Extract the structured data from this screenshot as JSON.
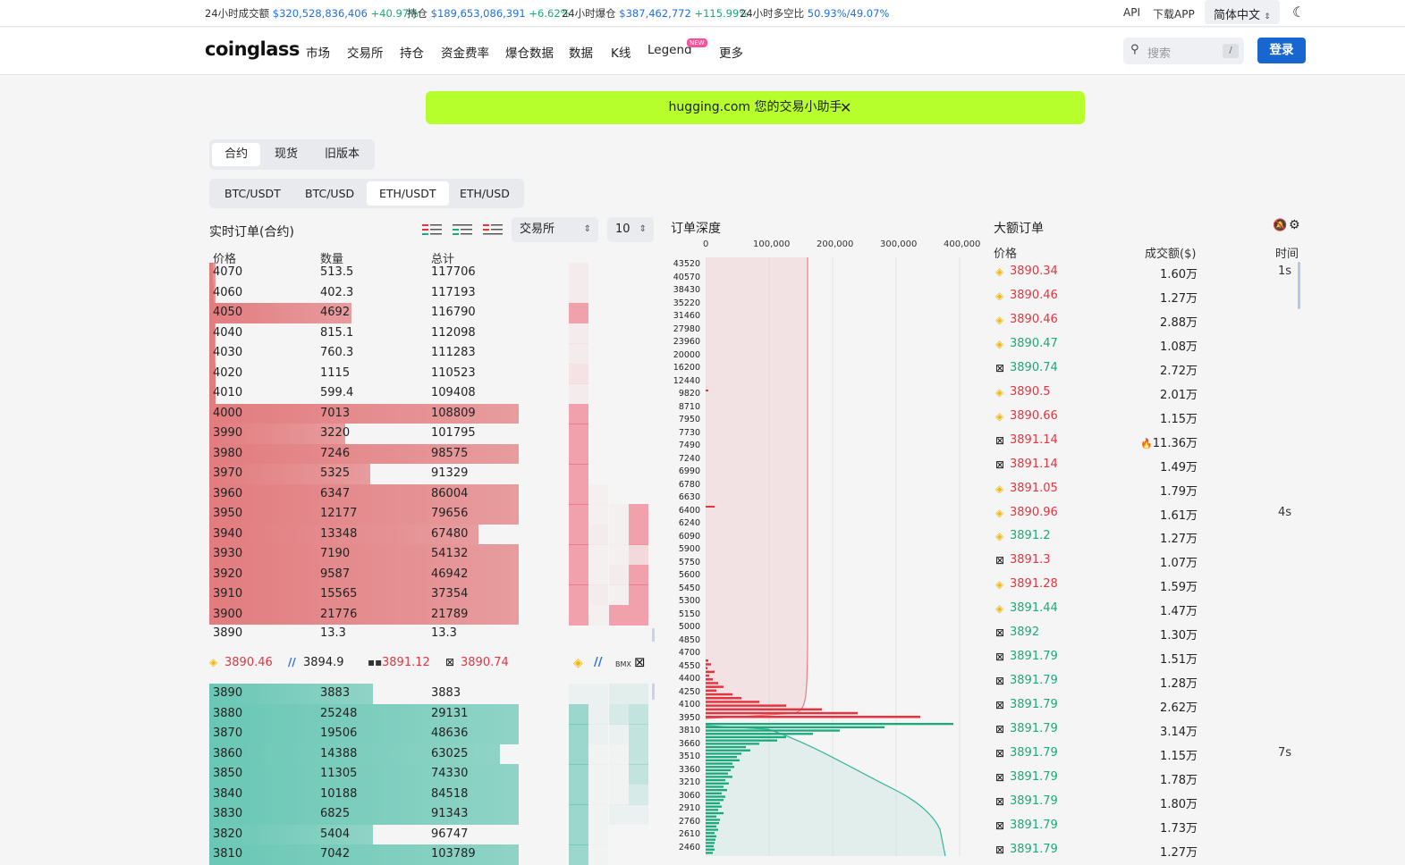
{
  "topbar": {
    "stats": [
      {
        "label": "24小时成交额",
        "value": "$320,528,836,406",
        "pct": "+40.97%"
      },
      {
        "label": "持仓",
        "value": "$189,653,086,391",
        "pct": "+6.62%"
      },
      {
        "label": "24小时爆仓",
        "value": "$387,462,772",
        "pct": "+115.99%"
      },
      {
        "label": "24小时多空比",
        "value": "50.93%/49.07%",
        "pct": ""
      }
    ],
    "api": "API",
    "download": "下载APP",
    "language": "简体中文",
    "language_chevron": "⌃⌄"
  },
  "nav": {
    "logo": "coinglass",
    "items": [
      "市场",
      "交易所",
      "持仓",
      "资金费率",
      "爆仓数据",
      "数据",
      "K线",
      "Legend",
      "更多"
    ],
    "new_badge": "NEW",
    "search_placeholder": "搜索",
    "search_shortcut": "/",
    "login": "登录"
  },
  "banner": {
    "text": "hugging.com 您的交易小助手",
    "close": "✕"
  },
  "market_tabs": [
    "合约",
    "现货",
    "旧版本"
  ],
  "pair_tabs": [
    "BTC/USDT",
    "BTC/USD",
    "ETH/USDT",
    "ETH/USD"
  ],
  "orderbook": {
    "title": "实时订单(合约)",
    "exchange_select": "交易所",
    "size_select": "10",
    "headers": [
      "价格",
      "数量",
      "总计"
    ],
    "asks": [
      {
        "price": "4070",
        "qty": "513.5",
        "total": "117706",
        "fill": 0.02
      },
      {
        "price": "4060",
        "qty": "402.3",
        "total": "117193",
        "fill": 0.02
      },
      {
        "price": "4050",
        "qty": "4692",
        "total": "116790",
        "fill": 0.46
      },
      {
        "price": "4040",
        "qty": "815.1",
        "total": "112098",
        "fill": 0.02
      },
      {
        "price": "4030",
        "qty": "760.3",
        "total": "111283",
        "fill": 0.02
      },
      {
        "price": "4020",
        "qty": "1115",
        "total": "110523",
        "fill": 0.02
      },
      {
        "price": "4010",
        "qty": "599.4",
        "total": "109408",
        "fill": 0.02
      },
      {
        "price": "4000",
        "qty": "7013",
        "total": "108809",
        "fill": 1.0
      },
      {
        "price": "3990",
        "qty": "3220",
        "total": "101795",
        "fill": 0.44
      },
      {
        "price": "3980",
        "qty": "7246",
        "total": "98575",
        "fill": 1.0
      },
      {
        "price": "3970",
        "qty": "5325",
        "total": "91329",
        "fill": 0.52
      },
      {
        "price": "3960",
        "qty": "6347",
        "total": "86004",
        "fill": 1.0
      },
      {
        "price": "3950",
        "qty": "12177",
        "total": "79656",
        "fill": 1.0
      },
      {
        "price": "3940",
        "qty": "13348",
        "total": "67480",
        "fill": 0.87
      },
      {
        "price": "3930",
        "qty": "7190",
        "total": "54132",
        "fill": 1.0
      },
      {
        "price": "3920",
        "qty": "9587",
        "total": "46942",
        "fill": 1.0
      },
      {
        "price": "3910",
        "qty": "15565",
        "total": "37354",
        "fill": 1.0
      },
      {
        "price": "3900",
        "qty": "21776",
        "total": "21789",
        "fill": 1.0
      }
    ],
    "mid": {
      "price": "3890",
      "qty": "13.3",
      "total": "13.3"
    },
    "exchange_prices": [
      {
        "icon": "binance-icon",
        "price": "3890.46",
        "color": "red"
      },
      {
        "icon": "bybit-icon",
        "price": "3894.9",
        "color": "black"
      },
      {
        "icon": "bitmex-icon",
        "price": "3891.12",
        "color": "red"
      },
      {
        "icon": "okx-icon",
        "price": "3890.74",
        "color": "red"
      }
    ],
    "bids": [
      {
        "price": "3890",
        "qty": "3883",
        "total": "3883",
        "fill": 0.53
      },
      {
        "price": "3880",
        "qty": "25248",
        "total": "29131",
        "fill": 1.0
      },
      {
        "price": "3870",
        "qty": "19506",
        "total": "48636",
        "fill": 1.0
      },
      {
        "price": "3860",
        "qty": "14388",
        "total": "63025",
        "fill": 0.94
      },
      {
        "price": "3850",
        "qty": "11305",
        "total": "74330",
        "fill": 1.0
      },
      {
        "price": "3840",
        "qty": "10188",
        "total": "84518",
        "fill": 1.0
      },
      {
        "price": "3830",
        "qty": "6825",
        "total": "91343",
        "fill": 1.0
      },
      {
        "price": "3820",
        "qty": "5404",
        "total": "96747",
        "fill": 0.53
      },
      {
        "price": "3810",
        "qty": "7042",
        "total": "103789",
        "fill": 1.0
      }
    ]
  },
  "depth": {
    "title": "订单深度",
    "x_ticks": [
      "0",
      "100,000",
      "200,000",
      "300,000",
      "400,000"
    ],
    "y_ticks": [
      "43520",
      "40570",
      "38430",
      "35220",
      "31460",
      "27980",
      "23960",
      "20000",
      "16200",
      "12440",
      "9820",
      "8710",
      "7950",
      "7730",
      "7490",
      "7240",
      "6990",
      "6780",
      "6630",
      "6400",
      "6240",
      "6090",
      "5900",
      "5750",
      "5600",
      "5450",
      "5300",
      "5150",
      "5000",
      "4850",
      "4700",
      "4550",
      "4400",
      "4250",
      "4100",
      "3950",
      "3810",
      "3660",
      "3510",
      "3360",
      "3210",
      "3060",
      "2910",
      "2760",
      "2610",
      "2460"
    ]
  },
  "large_orders": {
    "title": "大额订单",
    "headers": [
      "价格",
      "成交额($)",
      "时间"
    ],
    "rows": [
      {
        "ex": "binance",
        "price": "3890.34",
        "side": "red",
        "amount": "1.60万",
        "time": "1s"
      },
      {
        "ex": "binance",
        "price": "3890.46",
        "side": "red",
        "amount": "1.27万",
        "time": ""
      },
      {
        "ex": "binance",
        "price": "3890.46",
        "side": "red",
        "amount": "2.88万",
        "time": ""
      },
      {
        "ex": "binance",
        "price": "3890.47",
        "side": "green",
        "amount": "1.08万",
        "time": ""
      },
      {
        "ex": "okx",
        "price": "3890.74",
        "side": "green",
        "amount": "2.72万",
        "time": ""
      },
      {
        "ex": "binance",
        "price": "3890.5",
        "side": "red",
        "amount": "2.01万",
        "time": ""
      },
      {
        "ex": "binance",
        "price": "3890.66",
        "side": "red",
        "amount": "1.15万",
        "time": ""
      },
      {
        "ex": "okx",
        "price": "3891.14",
        "side": "red",
        "amount": "11.36万",
        "time": "",
        "fire": true
      },
      {
        "ex": "okx",
        "price": "3891.14",
        "side": "red",
        "amount": "1.49万",
        "time": ""
      },
      {
        "ex": "binance",
        "price": "3891.05",
        "side": "red",
        "amount": "1.79万",
        "time": ""
      },
      {
        "ex": "binance",
        "price": "3890.96",
        "side": "red",
        "amount": "1.61万",
        "time": "4s"
      },
      {
        "ex": "binance",
        "price": "3891.2",
        "side": "green",
        "amount": "1.27万",
        "time": ""
      },
      {
        "ex": "okx",
        "price": "3891.3",
        "side": "red",
        "amount": "1.07万",
        "time": ""
      },
      {
        "ex": "binance",
        "price": "3891.28",
        "side": "red",
        "amount": "1.59万",
        "time": ""
      },
      {
        "ex": "binance",
        "price": "3891.44",
        "side": "green",
        "amount": "1.47万",
        "time": ""
      },
      {
        "ex": "okx",
        "price": "3892",
        "side": "green",
        "amount": "1.30万",
        "time": ""
      },
      {
        "ex": "okx",
        "price": "3891.79",
        "side": "green",
        "amount": "1.51万",
        "time": ""
      },
      {
        "ex": "okx",
        "price": "3891.79",
        "side": "green",
        "amount": "1.28万",
        "time": ""
      },
      {
        "ex": "okx",
        "price": "3891.79",
        "side": "green",
        "amount": "2.62万",
        "time": ""
      },
      {
        "ex": "okx",
        "price": "3891.79",
        "side": "green",
        "amount": "3.14万",
        "time": ""
      },
      {
        "ex": "okx",
        "price": "3891.79",
        "side": "green",
        "amount": "1.15万",
        "time": "7s"
      },
      {
        "ex": "okx",
        "price": "3891.79",
        "side": "green",
        "amount": "1.78万",
        "time": ""
      },
      {
        "ex": "okx",
        "price": "3891.79",
        "side": "green",
        "amount": "1.80万",
        "time": ""
      },
      {
        "ex": "okx",
        "price": "3891.79",
        "side": "green",
        "amount": "1.73万",
        "time": ""
      },
      {
        "ex": "okx",
        "price": "3891.79",
        "side": "green",
        "amount": "1.27万",
        "time": ""
      }
    ]
  },
  "colors": {
    "red": "#e5343f",
    "green": "#1aa97a",
    "ask_bar": "#e27c7f",
    "bid_bar": "#6ac7b5",
    "banner": "#b6ff2d",
    "brand": "#1867d1"
  }
}
